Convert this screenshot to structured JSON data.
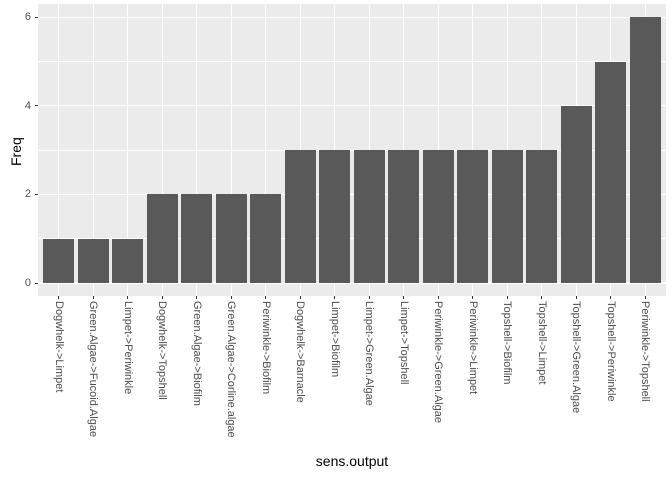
{
  "chart_data": {
    "type": "bar",
    "title": "",
    "xlabel": "sens.output",
    "ylabel": "Freq",
    "categories": [
      "Dogwhelk->Limpet",
      "Green.Algae->Fucoid.Algae",
      "Limpet->Periwinkle",
      "Dogwhelk->Topshell",
      "Green.Algae->Biofilm",
      "Green.Algae->Corline.algae",
      "Periwinkle->Biofilm",
      "Dogwhelk->Barnacle",
      "Limpet->Biofilm",
      "Limpet->Green.Algae",
      "Limpet->Topshell",
      "Periwinkle->Green.Algae",
      "Periwinkle->Limpet",
      "Topshell->Biofilm",
      "Topshell->Limpet",
      "Topshell->Green.Algae",
      "Topshell->Periwinkle",
      "Periwinkle->Topshell"
    ],
    "values": [
      1,
      1,
      1,
      2,
      2,
      2,
      2,
      3,
      3,
      3,
      3,
      3,
      3,
      3,
      3,
      4,
      5,
      6
    ],
    "y_ticks": [
      0,
      2,
      4,
      6
    ],
    "y_minor_gridlines": [
      1,
      3,
      5
    ],
    "ylim": [
      -0.3,
      6.3
    ],
    "grid": "horizontal major+minor, vertical major at category centers",
    "legend": "none",
    "style": {
      "bar_color": "#595959",
      "panel_background": "#ebebeb",
      "figure_background": "#ffffff",
      "gridline_color": "#ffffff",
      "tick_mark_color": "#333333",
      "axis_text_color": "#4d4d4d",
      "axis_title_color": "#000000"
    }
  }
}
